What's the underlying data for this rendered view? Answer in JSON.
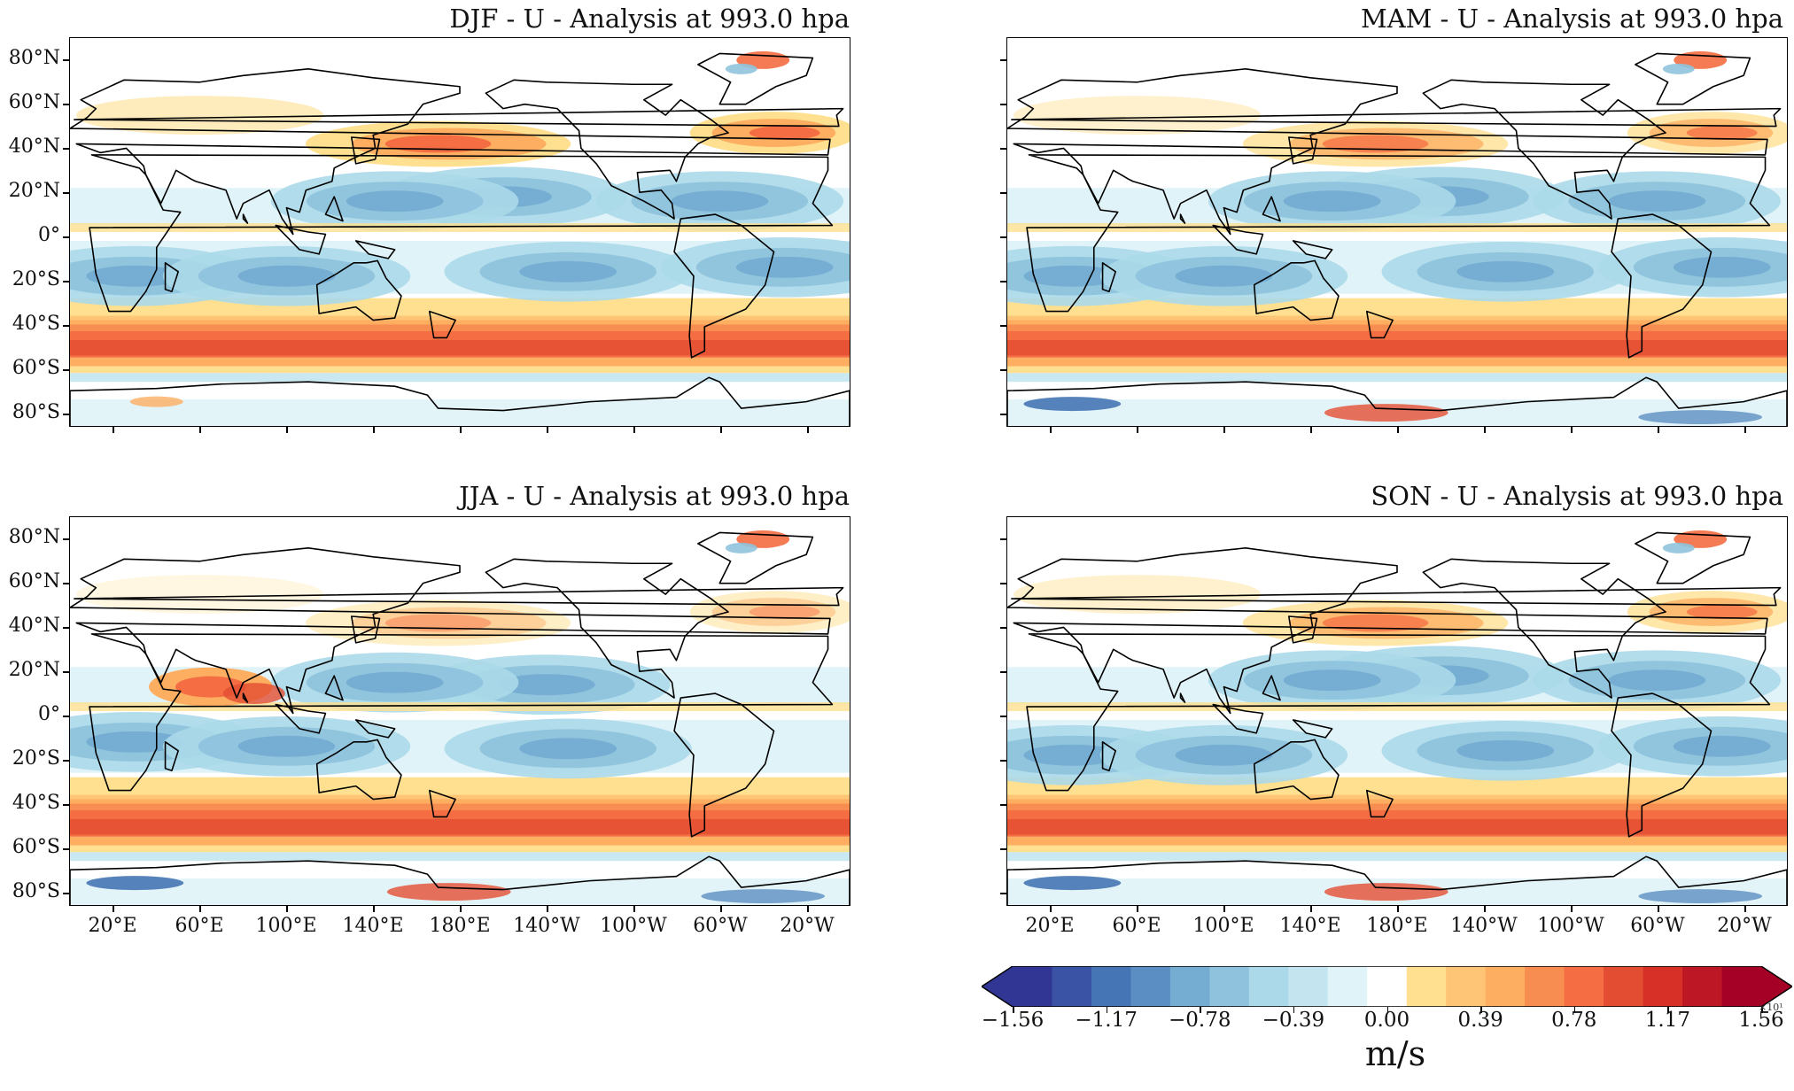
{
  "panels": [
    {
      "id": "djf",
      "title": "DJF - U - Analysis at 993.0 hpa",
      "show_lat": true,
      "show_lon": false
    },
    {
      "id": "mam",
      "title": "MAM - U - Analysis at 993.0 hpa",
      "show_lat": false,
      "show_lon": false
    },
    {
      "id": "jja",
      "title": "JJA - U - Analysis at 993.0 hpa",
      "show_lat": true,
      "show_lon": true
    },
    {
      "id": "son",
      "title": "SON - U - Analysis at 993.0 hpa",
      "show_lat": false,
      "show_lon": true
    }
  ],
  "lat_ticks": [
    "80°N",
    "60°N",
    "40°N",
    "20°N",
    "0°",
    "20°S",
    "40°S",
    "60°S",
    "80°S"
  ],
  "lon_ticks": [
    "20°E",
    "60°E",
    "100°E",
    "140°E",
    "180°E",
    "140°W",
    "100°W",
    "60°W",
    "20°W"
  ],
  "colorbar": {
    "tick_labels": [
      "−1.56",
      "−1.17",
      "−0.78",
      "−0.39",
      "0.00",
      "0.39",
      "0.78",
      "1.17",
      "1.56"
    ],
    "offset_text": "×10¹",
    "units": "m/s",
    "colors": [
      "#313695",
      "#3a53a4",
      "#4575b4",
      "#5b8ec2",
      "#74add1",
      "#8fc3dd",
      "#abd9e9",
      "#c4e5f0",
      "#e0f3f8",
      "#ffffff",
      "#fee090",
      "#fdc575",
      "#fdae61",
      "#f88d52",
      "#f46d43",
      "#e34e32",
      "#d73027",
      "#bd1726",
      "#a50026"
    ],
    "range": [
      -15.6,
      15.6
    ]
  },
  "palette": {
    "frame": "#000000",
    "coast": "#000000",
    "background": "#ffffff"
  }
}
